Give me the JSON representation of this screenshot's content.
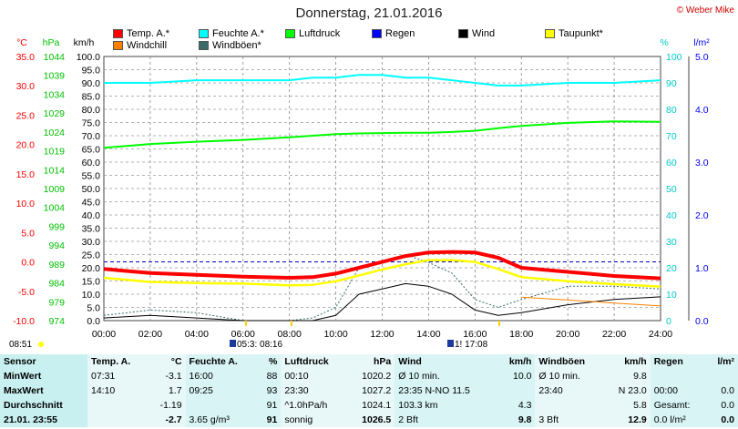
{
  "title": "Donnerstag, 21.01.2016",
  "copyright": "© Weber Mike",
  "legend": [
    {
      "label": "Temp. A.*",
      "color": "#ff0000"
    },
    {
      "label": "Feuchte A.*",
      "color": "#00ffff"
    },
    {
      "label": "Luftdruck",
      "color": "#00ff00"
    },
    {
      "label": "Regen",
      "color": "#0000ff"
    },
    {
      "label": "Wind",
      "color": "#000000"
    },
    {
      "label": "Taupunkt*",
      "color": "#ffff00"
    },
    {
      "label": "Windchill",
      "color": "#ff8000"
    },
    {
      "label": "Windböen*",
      "color": "#3a6a6a"
    }
  ],
  "axes": {
    "temp": {
      "unit": "°C",
      "ticks": [
        "35.0",
        "30.0",
        "25.0",
        "20.0",
        "15.0",
        "10.0",
        "5.0",
        "0.0",
        "-5.0",
        "-10.0"
      ],
      "color": "#ff0000"
    },
    "pressure": {
      "unit": "hPa",
      "ticks": [
        "1044",
        "1039",
        "1034",
        "1029",
        "1024",
        "1019",
        "1014",
        "1009",
        "1004",
        "999",
        "994",
        "989",
        "984",
        "979",
        "974"
      ],
      "color": "#00c000"
    },
    "wind": {
      "unit": "km/h",
      "ticks": [
        "100.0",
        "95.0",
        "90.0",
        "85.0",
        "80.0",
        "75.0",
        "70.0",
        "65.0",
        "60.0",
        "55.0",
        "50.0",
        "45.0",
        "40.0",
        "35.0",
        "30.0",
        "25.0",
        "20.0",
        "15.0",
        "10.0",
        "5.0",
        "0.0"
      ]
    },
    "humidity": {
      "unit": "%",
      "ticks": [
        "100",
        "90",
        "80",
        "70",
        "60",
        "50",
        "40",
        "30",
        "20",
        "10",
        "0"
      ],
      "color": "#00c8c8"
    },
    "rain": {
      "unit": "l/m²",
      "ticks": [
        "5.0",
        "4.0",
        "3.0",
        "2.0",
        "1.0",
        "0.0"
      ],
      "color": "#0000ff"
    },
    "x": {
      "ticks": [
        "00:00",
        "02:00",
        "04:00",
        "06:00",
        "08:00",
        "10:00",
        "12:00",
        "14:00",
        "16:00",
        "18:00",
        "20:00",
        "22:00",
        "24:00"
      ]
    }
  },
  "markers": {
    "sunrise_label": "05:3: 08:16",
    "sunset_label": "1! 17:08",
    "corner_time": "08:51"
  },
  "chart_data": {
    "type": "line",
    "x_unit": "hour",
    "x": [
      0,
      2,
      4,
      6,
      8,
      9,
      10,
      11,
      12,
      13,
      14,
      15,
      16,
      17,
      18,
      20,
      22,
      24
    ],
    "series": [
      {
        "name": "Temp. A.*",
        "axis": "°C",
        "color": "#ff0000",
        "values": [
          -1.2,
          -1.9,
          -2.2,
          -2.5,
          -2.7,
          -2.6,
          -2.0,
          -1.0,
          0.0,
          1.0,
          1.6,
          1.7,
          1.6,
          0.7,
          -1.0,
          -1.7,
          -2.4,
          -2.8
        ]
      },
      {
        "name": "Feuchte A.*",
        "axis": "%",
        "color": "#00ffff",
        "values": [
          90,
          90,
          91,
          91,
          91,
          92,
          92,
          93,
          93,
          92,
          92,
          91,
          90,
          89,
          89,
          90,
          90,
          91
        ]
      },
      {
        "name": "Luftdruck",
        "axis": "hPa",
        "color": "#00ff00",
        "values": [
          1019.8,
          1020.8,
          1021.4,
          1021.9,
          1022.6,
          1023.0,
          1023.4,
          1023.6,
          1023.7,
          1023.8,
          1023.8,
          1024.0,
          1024.3,
          1025.0,
          1025.6,
          1026.4,
          1026.8,
          1026.7
        ]
      },
      {
        "name": "Taupunkt*",
        "axis": "°C",
        "color": "#ffff00",
        "values": [
          -2.7,
          -3.4,
          -3.6,
          -3.7,
          -4.0,
          -3.9,
          -3.3,
          -2.3,
          -1.3,
          -0.4,
          0.3,
          0.3,
          0.0,
          -1.2,
          -2.6,
          -3.3,
          -3.8,
          -4.2
        ]
      },
      {
        "name": "Windchill",
        "axis": "°C",
        "color": "#ff8000",
        "values": [
          null,
          null,
          null,
          null,
          null,
          null,
          null,
          null,
          null,
          null,
          null,
          null,
          null,
          null,
          -6.0,
          -6.5,
          -7.0,
          -7.5
        ]
      },
      {
        "name": "Wind",
        "axis": "km/h",
        "color": "#000000",
        "values": [
          1,
          2,
          1,
          0,
          0,
          0,
          2,
          10,
          12,
          14,
          13,
          10,
          4,
          2,
          3,
          6,
          8,
          9
        ]
      },
      {
        "name": "Windböen*",
        "axis": "km/h",
        "color": "#3a6a6a",
        "values": [
          2,
          4,
          3,
          0,
          0,
          1,
          5,
          20,
          22,
          25,
          22,
          18,
          8,
          5,
          8,
          13,
          13,
          12
        ]
      }
    ],
    "zero_line_temp": 0.0
  },
  "stats": {
    "header": [
      "Sensor",
      "Temp. A.",
      "°C",
      "Feuchte A.",
      "%",
      "Luftdruck",
      "hPa",
      "Wind",
      "km/h",
      "Windböen",
      "km/h",
      "Regen",
      "l/m²"
    ],
    "rows": [
      {
        "label": "MinWert",
        "cells": [
          "07:31",
          "-3.1",
          "16:00",
          "88",
          "00:10",
          "1020.2",
          "Ø 10 min.",
          "10.0",
          "Ø 10 min.",
          "9.8",
          "",
          ""
        ]
      },
      {
        "label": "MaxWert",
        "cells": [
          "14:10",
          "1.7",
          "09:25",
          "93",
          "23:30",
          "1027.2",
          "23:35      N-NO 11.5",
          "",
          "23:40",
          "N 23.0",
          "00:00",
          "0.0"
        ]
      },
      {
        "label": "Durchschnitt",
        "cells": [
          "",
          "-1.19",
          "",
          "91",
          "^1.0hPa/h",
          "1024.1",
          "103.3 km",
          "4.3",
          "",
          "5.8",
          "Gesamt:",
          "0.0"
        ]
      },
      {
        "label": "21.01. 23:55",
        "cells": [
          "",
          "-2.7",
          "3.65 g/m³",
          "91",
          "sonnig",
          "1026.5",
          "2 Bft",
          "9.8",
          "3 Bft",
          "12.9",
          "0.0 l/m²",
          "0.0"
        ]
      }
    ]
  }
}
